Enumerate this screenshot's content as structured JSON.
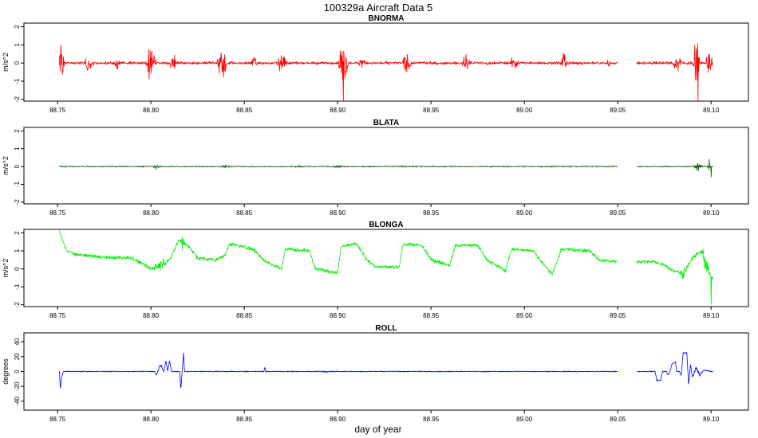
{
  "figure": {
    "title": "100329a   Aircraft Data 5",
    "xlabel": "day of year"
  },
  "chart_data": [
    {
      "type": "line",
      "title": "BNORMA",
      "ylabel": "m/s^2",
      "color": "#ff0000",
      "xlim": [
        88.732,
        89.12
      ],
      "ylim": [
        -2.1,
        2.2
      ],
      "xticks": [
        88.75,
        88.8,
        88.85,
        88.9,
        88.95,
        89.0,
        89.05,
        89.1
      ],
      "xtick_labels": [
        "88.75",
        "88.80",
        "88.85",
        "88.90",
        "88.95",
        "89.00",
        "89.05",
        "89.10"
      ],
      "yticks": [
        -2,
        -1,
        0,
        1,
        2
      ],
      "ytick_labels": [
        "-2",
        "-1",
        "0",
        "1",
        "2"
      ],
      "x_range": [
        88.751,
        89.101
      ],
      "gap": [
        89.05,
        89.06
      ],
      "baseline": 0.0,
      "noise": 0.05,
      "bursts": [
        {
          "x": 88.752,
          "w": 0.002,
          "a": 1.5
        },
        {
          "x": 88.767,
          "w": 0.003,
          "a": 0.8
        },
        {
          "x": 88.782,
          "w": 0.002,
          "a": 0.5
        },
        {
          "x": 88.8,
          "w": 0.003,
          "a": 1.9
        },
        {
          "x": 88.812,
          "w": 0.002,
          "a": 0.8
        },
        {
          "x": 88.838,
          "w": 0.003,
          "a": 1.8
        },
        {
          "x": 88.855,
          "w": 0.002,
          "a": 0.5
        },
        {
          "x": 88.87,
          "w": 0.003,
          "a": 0.9
        },
        {
          "x": 88.903,
          "w": 0.003,
          "a": 2.0
        },
        {
          "x": 88.913,
          "w": 0.002,
          "a": 0.6
        },
        {
          "x": 88.937,
          "w": 0.003,
          "a": 1.0
        },
        {
          "x": 88.969,
          "w": 0.003,
          "a": 0.9
        },
        {
          "x": 88.995,
          "w": 0.003,
          "a": 0.6
        },
        {
          "x": 89.021,
          "w": 0.003,
          "a": 0.7
        },
        {
          "x": 89.045,
          "w": 0.002,
          "a": 0.3
        },
        {
          "x": 89.082,
          "w": 0.003,
          "a": 0.8
        },
        {
          "x": 89.092,
          "w": 0.002,
          "a": 2.1
        },
        {
          "x": 89.099,
          "w": 0.002,
          "a": 1.6
        }
      ],
      "steps": [],
      "spikes": [
        {
          "x": 88.903,
          "y": -2.1
        },
        {
          "x": 89.093,
          "y": -2.1
        }
      ]
    },
    {
      "type": "line",
      "title": "BLATA",
      "ylabel": "m/s^2",
      "color": "#006400",
      "xlim": [
        88.732,
        89.12
      ],
      "ylim": [
        -2.1,
        2.2
      ],
      "xticks": [
        88.75,
        88.8,
        88.85,
        88.9,
        88.95,
        89.0,
        89.05,
        89.1
      ],
      "xtick_labels": [
        "88.75",
        "88.80",
        "88.85",
        "88.90",
        "88.95",
        "89.00",
        "89.05",
        "89.10"
      ],
      "yticks": [
        -2,
        -1,
        0,
        1,
        2
      ],
      "ytick_labels": [
        "-2",
        "-1",
        "0",
        "1",
        "2"
      ],
      "x_range": [
        88.751,
        89.101
      ],
      "gap": [
        89.05,
        89.06
      ],
      "baseline": 0.0,
      "noise": 0.02,
      "bursts": [
        {
          "x": 88.803,
          "w": 0.003,
          "a": 0.15
        },
        {
          "x": 88.84,
          "w": 0.003,
          "a": 0.12
        },
        {
          "x": 88.88,
          "w": 0.003,
          "a": 0.1
        },
        {
          "x": 88.9,
          "w": 0.003,
          "a": 0.12
        },
        {
          "x": 88.935,
          "w": 0.002,
          "a": 0.06
        },
        {
          "x": 89.093,
          "w": 0.003,
          "a": 0.3
        },
        {
          "x": 89.099,
          "w": 0.001,
          "a": 0.5
        }
      ],
      "steps": [],
      "spikes": [
        {
          "x": 89.1,
          "y": -0.6
        }
      ]
    },
    {
      "type": "line",
      "title": "BLONGA",
      "ylabel": "m/s^2",
      "color": "#00ee00",
      "xlim": [
        88.732,
        89.12
      ],
      "ylim": [
        -2.1,
        2.2
      ],
      "xticks": [
        88.75,
        88.8,
        88.85,
        88.9,
        88.95,
        89.0,
        89.05,
        89.1
      ],
      "xtick_labels": [
        "88.75",
        "88.80",
        "88.85",
        "88.90",
        "88.95",
        "89.00",
        "89.05",
        "89.10"
      ],
      "yticks": [
        -2,
        -1,
        0,
        1,
        2
      ],
      "ytick_labels": [
        "-2",
        "-1",
        "0",
        "1",
        "2"
      ],
      "x_range": [
        88.751,
        89.101
      ],
      "gap": [
        89.05,
        89.06
      ],
      "baseline": 0.0,
      "noise": 0.07,
      "bursts": [
        {
          "x": 88.805,
          "w": 0.004,
          "a": 0.6
        },
        {
          "x": 88.817,
          "w": 0.002,
          "a": 0.7
        },
        {
          "x": 89.085,
          "w": 0.004,
          "a": 0.4
        },
        {
          "x": 89.097,
          "w": 0.003,
          "a": 0.8
        }
      ],
      "steps": [
        [
          88.751,
          2.1
        ],
        [
          88.753,
          1.5
        ],
        [
          88.755,
          1.0
        ],
        [
          88.76,
          0.8
        ],
        [
          88.775,
          0.65
        ],
        [
          88.79,
          0.6
        ],
        [
          88.795,
          0.3
        ],
        [
          88.8,
          0.0
        ],
        [
          88.81,
          0.5
        ],
        [
          88.815,
          1.6
        ],
        [
          88.82,
          1.3
        ],
        [
          88.825,
          0.6
        ],
        [
          88.835,
          0.5
        ],
        [
          88.84,
          0.8
        ],
        [
          88.842,
          1.4
        ],
        [
          88.855,
          1.1
        ],
        [
          88.86,
          0.5
        ],
        [
          88.87,
          0.0
        ],
        [
          88.872,
          1.1
        ],
        [
          88.885,
          1.0
        ],
        [
          88.888,
          0.0
        ],
        [
          88.9,
          -0.2
        ],
        [
          88.902,
          1.3
        ],
        [
          88.91,
          1.4
        ],
        [
          88.915,
          0.6
        ],
        [
          88.92,
          0.1
        ],
        [
          88.933,
          0.1
        ],
        [
          88.935,
          1.4
        ],
        [
          88.945,
          1.3
        ],
        [
          88.95,
          0.5
        ],
        [
          88.96,
          0.2
        ],
        [
          88.963,
          1.3
        ],
        [
          88.975,
          1.3
        ],
        [
          88.98,
          0.5
        ],
        [
          88.99,
          -0.1
        ],
        [
          88.993,
          1.1
        ],
        [
          89.005,
          1.0
        ],
        [
          89.01,
          0.3
        ],
        [
          89.015,
          -0.3
        ],
        [
          89.02,
          1.1
        ],
        [
          89.035,
          1.0
        ],
        [
          89.04,
          0.5
        ],
        [
          89.05,
          0.4
        ],
        [
          89.06,
          0.4
        ],
        [
          89.07,
          0.4
        ],
        [
          89.075,
          0.2
        ],
        [
          89.08,
          -0.1
        ],
        [
          89.085,
          -0.3
        ],
        [
          89.09,
          0.6
        ],
        [
          89.095,
          1.0
        ],
        [
          89.1,
          -0.5
        ]
      ],
      "spikes": [
        {
          "x": 89.1,
          "y": -2.0
        }
      ]
    },
    {
      "type": "line",
      "title": "ROLL",
      "ylabel": "degrees",
      "color": "#0000ff",
      "xlim": [
        88.732,
        89.12
      ],
      "ylim": [
        -52,
        52
      ],
      "xticks": [
        88.75,
        88.8,
        88.85,
        88.9,
        88.95,
        89.0,
        89.05,
        89.1
      ],
      "xtick_labels": [
        "88.75",
        "88.80",
        "88.85",
        "88.90",
        "88.95",
        "89.00",
        "89.05",
        "89.10"
      ],
      "yticks": [
        -40,
        -20,
        0,
        20,
        40
      ],
      "ytick_labels": [
        "-40",
        "-20",
        "0",
        "20",
        "40"
      ],
      "x_range": [
        88.751,
        89.101
      ],
      "gap": [
        89.05,
        89.06
      ],
      "baseline": 0.0,
      "noise": 0.4,
      "bursts": [
        {
          "x": 88.805,
          "w": 0.002,
          "a": 3
        },
        {
          "x": 88.893,
          "w": 0.002,
          "a": 2
        },
        {
          "x": 89.093,
          "w": 0.003,
          "a": 4
        }
      ],
      "steps": [
        [
          88.751,
          0
        ],
        [
          88.7515,
          -25
        ],
        [
          88.752,
          -10
        ],
        [
          88.753,
          0
        ],
        [
          88.802,
          0
        ],
        [
          88.803,
          -5
        ],
        [
          88.805,
          10
        ],
        [
          88.807,
          0
        ],
        [
          88.808,
          15
        ],
        [
          88.809,
          0
        ],
        [
          88.81,
          15
        ],
        [
          88.811,
          0
        ],
        [
          88.8155,
          0
        ],
        [
          88.816,
          -25
        ],
        [
          88.8175,
          25
        ],
        [
          88.818,
          0
        ],
        [
          88.8605,
          0
        ],
        [
          88.861,
          6
        ],
        [
          88.8615,
          0
        ],
        [
          89.06,
          0
        ],
        [
          89.07,
          0
        ],
        [
          89.071,
          -12
        ],
        [
          89.073,
          -12
        ],
        [
          89.074,
          0
        ],
        [
          89.076,
          0
        ],
        [
          89.077,
          -5
        ],
        [
          89.078,
          0
        ],
        [
          89.079,
          10
        ],
        [
          89.081,
          13
        ],
        [
          89.0815,
          0
        ],
        [
          89.083,
          0
        ],
        [
          89.084,
          -5
        ],
        [
          89.085,
          25
        ],
        [
          89.087,
          25
        ],
        [
          89.088,
          -18
        ],
        [
          89.089,
          10
        ],
        [
          89.09,
          -8
        ],
        [
          89.092,
          5
        ],
        [
          89.094,
          -5
        ],
        [
          89.096,
          2
        ],
        [
          89.1,
          0
        ]
      ],
      "spikes": []
    }
  ]
}
